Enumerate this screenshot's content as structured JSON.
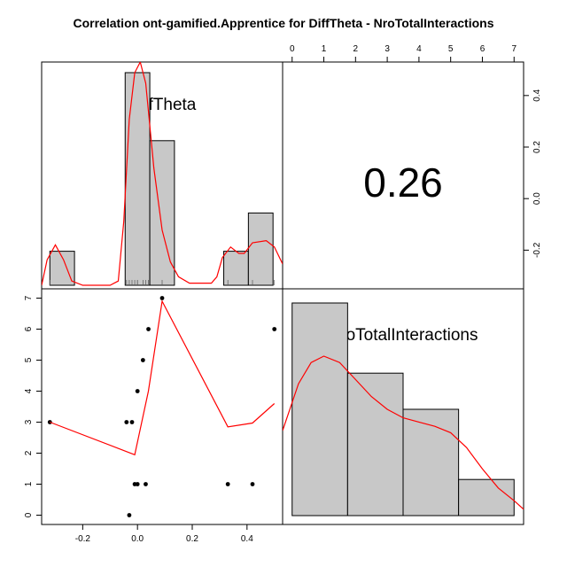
{
  "chart_data": {
    "type": "scatter-matrix",
    "title": "Correlation ont-gamified.Apprentice for DiffTheta - NroTotalInteractions",
    "variables": [
      "DiffTheta",
      "NroTotalInteractions"
    ],
    "correlation": "0.26",
    "diffTheta_range": [
      -0.35,
      0.53
    ],
    "nro_range": [
      0,
      7
    ],
    "diffTheta_ticks": [
      "-0.2",
      "0.0",
      "0.2",
      "0.4"
    ],
    "nro_ticks": [
      "0",
      "1",
      "2",
      "3",
      "4",
      "5",
      "6",
      "7"
    ],
    "scatter_points": [
      {
        "x": -0.32,
        "y": 3
      },
      {
        "x": -0.04,
        "y": 3
      },
      {
        "x": -0.02,
        "y": 3
      },
      {
        "x": -0.03,
        "y": 0
      },
      {
        "x": -0.01,
        "y": 1
      },
      {
        "x": 0.0,
        "y": 1
      },
      {
        "x": 0.03,
        "y": 1
      },
      {
        "x": 0.0,
        "y": 4
      },
      {
        "x": 0.02,
        "y": 5
      },
      {
        "x": 0.04,
        "y": 6
      },
      {
        "x": 0.09,
        "y": 7
      },
      {
        "x": 0.33,
        "y": 1
      },
      {
        "x": 0.42,
        "y": 1
      },
      {
        "x": 0.5,
        "y": 6
      }
    ],
    "scatter_smooth": [
      {
        "x": -0.32,
        "y": 3.0
      },
      {
        "x": -0.01,
        "y": 1.95
      },
      {
        "x": 0.04,
        "y": 4.0
      },
      {
        "x": 0.09,
        "y": 6.9
      },
      {
        "x": 0.33,
        "y": 2.85
      },
      {
        "x": 0.42,
        "y": 2.97
      },
      {
        "x": 0.5,
        "y": 3.6
      }
    ],
    "diffTheta_hist": {
      "bins": [
        [
          -0.32,
          -0.23
        ],
        [
          -0.045,
          0.045
        ],
        [
          0.045,
          0.135
        ],
        [
          0.315,
          0.405
        ],
        [
          0.405,
          0.495
        ]
      ],
      "heights": [
        0.16,
        1.0,
        0.68,
        0.16,
        0.34
      ]
    },
    "diffTheta_rug": [
      -0.32,
      -0.04,
      -0.03,
      -0.02,
      -0.01,
      0.0,
      0.0,
      0.02,
      0.03,
      0.04,
      0.09,
      0.33,
      0.42,
      0.5
    ],
    "diffTheta_density": [
      {
        "x": -0.35,
        "y": 0.0
      },
      {
        "x": -0.33,
        "y": 0.12
      },
      {
        "x": -0.3,
        "y": 0.19
      },
      {
        "x": -0.27,
        "y": 0.12
      },
      {
        "x": -0.24,
        "y": 0.02
      },
      {
        "x": -0.2,
        "y": 0.0
      },
      {
        "x": -0.1,
        "y": 0.0
      },
      {
        "x": -0.07,
        "y": 0.02
      },
      {
        "x": -0.05,
        "y": 0.3
      },
      {
        "x": -0.03,
        "y": 0.78
      },
      {
        "x": -0.01,
        "y": 1.0
      },
      {
        "x": 0.01,
        "y": 1.05
      },
      {
        "x": 0.03,
        "y": 0.95
      },
      {
        "x": 0.06,
        "y": 0.55
      },
      {
        "x": 0.09,
        "y": 0.26
      },
      {
        "x": 0.12,
        "y": 0.11
      },
      {
        "x": 0.15,
        "y": 0.04
      },
      {
        "x": 0.19,
        "y": 0.01
      },
      {
        "x": 0.27,
        "y": 0.01
      },
      {
        "x": 0.29,
        "y": 0.04
      },
      {
        "x": 0.31,
        "y": 0.13
      },
      {
        "x": 0.34,
        "y": 0.18
      },
      {
        "x": 0.37,
        "y": 0.15
      },
      {
        "x": 0.39,
        "y": 0.15
      },
      {
        "x": 0.42,
        "y": 0.2
      },
      {
        "x": 0.47,
        "y": 0.21
      },
      {
        "x": 0.5,
        "y": 0.18
      },
      {
        "x": 0.53,
        "y": 0.1
      }
    ],
    "nro_hist": {
      "bins": [
        [
          0,
          1.75
        ],
        [
          1.75,
          3.5
        ],
        [
          3.5,
          5.25
        ],
        [
          5.25,
          7.0
        ]
      ],
      "heights": [
        1.0,
        0.67,
        0.5,
        0.17
      ]
    },
    "nro_density": [
      {
        "x": -0.3,
        "y": 0.4
      },
      {
        "x": 0.2,
        "y": 0.62
      },
      {
        "x": 0.6,
        "y": 0.72
      },
      {
        "x": 1.0,
        "y": 0.75
      },
      {
        "x": 1.5,
        "y": 0.72
      },
      {
        "x": 2.0,
        "y": 0.64
      },
      {
        "x": 2.5,
        "y": 0.56
      },
      {
        "x": 3.0,
        "y": 0.5
      },
      {
        "x": 3.5,
        "y": 0.46
      },
      {
        "x": 4.0,
        "y": 0.44
      },
      {
        "x": 4.5,
        "y": 0.42
      },
      {
        "x": 5.0,
        "y": 0.39
      },
      {
        "x": 5.5,
        "y": 0.32
      },
      {
        "x": 6.0,
        "y": 0.22
      },
      {
        "x": 6.5,
        "y": 0.13
      },
      {
        "x": 7.0,
        "y": 0.07
      },
      {
        "x": 7.3,
        "y": 0.03
      }
    ],
    "series_colors": {
      "bars": "#c8c8c8",
      "smooth": "#ff0000",
      "points": "#000000"
    }
  }
}
